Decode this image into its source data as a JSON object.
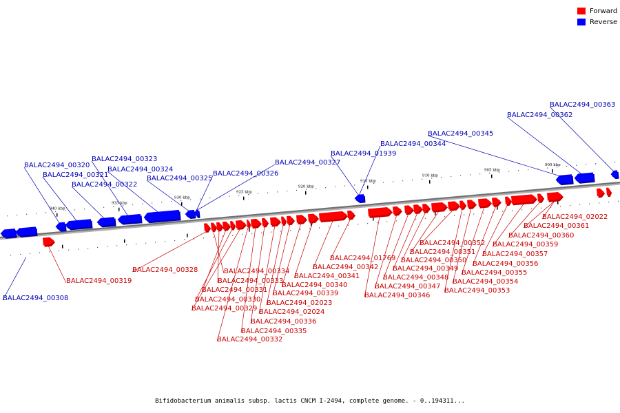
{
  "legend": {
    "forward": {
      "label": "Forward",
      "color": "#ff0000"
    },
    "reverse": {
      "label": "Reverse",
      "color": "#0000ff"
    }
  },
  "caption": "Bifidobacterium animalis subsp. lactis CNCM I-2494, complete genome. - 0..194311...",
  "colors": {
    "forward": "#ff0000",
    "forward_shade": "#c80000",
    "reverse": "#0000ff",
    "reverse_shade": "#0000aa",
    "forward_label": "#c80000",
    "reverse_label": "#0000b4",
    "backbone": "#707070"
  },
  "ticks": [
    "940 kbp",
    "935 kbp",
    "930 kbp",
    "925 kbp",
    "920 kbp",
    "915 kbp",
    "910 kbp",
    "905 kbp",
    "900 kbp"
  ],
  "reverse_genes": [
    "BALAC2494_00308",
    "BALAC2494_00320",
    "BALAC2494_00321",
    "BALAC2494_00322",
    "BALAC2494_00323",
    "BALAC2494_00324",
    "BALAC2494_00325",
    "BALAC2494_00326",
    "BALAC2494_00327",
    "BALAC2494_01939",
    "BALAC2494_00344",
    "BALAC2494_00345",
    "BALAC2494_00362",
    "BALAC2494_00363"
  ],
  "forward_genes": [
    "BALAC2494_00319",
    "BALAC2494_00328",
    "BALAC2494_00334",
    "BALAC2494_00333",
    "BALAC2494_00331",
    "BALAC2494_00330",
    "BALAC2494_00329",
    "BALAC2494_00332",
    "BALAC2494_00335",
    "BALAC2494_00336",
    "BALAC2494_02024",
    "BALAC2494_02023",
    "BALAC2494_00339",
    "BALAC2494_00340",
    "BALAC2494_00341",
    "BALAC2494_00342",
    "BALAC2494_01769",
    "BALAC2494_00346",
    "BALAC2494_00347",
    "BALAC2494_00348",
    "BALAC2494_00349",
    "BALAC2494_00350",
    "BALAC2494_00351",
    "BALAC2494_00352",
    "BALAC2494_00353",
    "BALAC2494_00354",
    "BALAC2494_00355",
    "BALAC2494_00356",
    "BALAC2494_00357",
    "BALAC2494_00359",
    "BALAC2494_00360",
    "BALAC2494_00361",
    "BALAC2494_02022"
  ]
}
